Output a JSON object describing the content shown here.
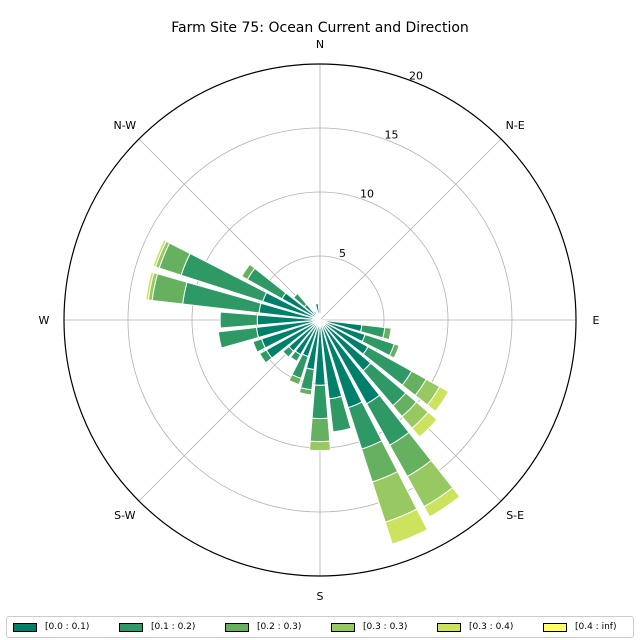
{
  "chart_data": {
    "type": "windrose",
    "title": "Farm Site 75: Ocean Current and Direction",
    "compass_labels": [
      "N",
      "N-E",
      "E",
      "S-E",
      "S",
      "S-W",
      "W",
      "N-W"
    ],
    "radial_ticks": [
      5,
      10,
      15,
      20
    ],
    "rmax": 20,
    "direction_step_deg": 11.25,
    "directions_deg": [
      0,
      11.25,
      22.5,
      33.75,
      45,
      56.25,
      67.5,
      78.75,
      90,
      101.25,
      112.5,
      123.75,
      135,
      146.25,
      157.5,
      168.75,
      180,
      191.25,
      202.5,
      213.75,
      225,
      236.25,
      247.5,
      258.75,
      270,
      281.25,
      292.5,
      303.75,
      315,
      326.25,
      337.5,
      348.75
    ],
    "bins": [
      {
        "label": "[0.0 : 0.1)",
        "color": "#00806a"
      },
      {
        "label": "[0.1 : 0.2)",
        "color": "#2f9966"
      },
      {
        "label": "[0.2 : 0.3)",
        "color": "#66b160"
      },
      {
        "label": "[0.3 : 0.3)",
        "color": "#98c862"
      },
      {
        "label": "[0.3 : 0.4)",
        "color": "#cce35e"
      },
      {
        "label": "[0.4 : inf)",
        "color": "#ffff66"
      }
    ],
    "values": [
      [
        0.5,
        0,
        0,
        0,
        0,
        0
      ],
      [
        0.3,
        0,
        0,
        0,
        0,
        0
      ],
      [
        0.2,
        0,
        0,
        0,
        0,
        0
      ],
      [
        0.1,
        0,
        0,
        0,
        0,
        0
      ],
      [
        0.1,
        0,
        0,
        0,
        0,
        0
      ],
      [
        0.1,
        0,
        0,
        0,
        0,
        0
      ],
      [
        0.1,
        0,
        0,
        0,
        0,
        0
      ],
      [
        0.1,
        0,
        0,
        0,
        0,
        0
      ],
      [
        0.1,
        0,
        0,
        0,
        0,
        0
      ],
      [
        3.3,
        1.8,
        0.5,
        0,
        0,
        0
      ],
      [
        3.7,
        2.4,
        0.4,
        0,
        0,
        0
      ],
      [
        4.3,
        3.9,
        1.3,
        1.2,
        0.8,
        0
      ],
      [
        5.2,
        3.6,
        1.1,
        1.2,
        0.9,
        0
      ],
      [
        7.5,
        3.7,
        2.8,
        2.7,
        0.9,
        0
      ],
      [
        7.2,
        3.4,
        2.7,
        3.3,
        1.8,
        0
      ],
      [
        6.2,
        2.6,
        0,
        0,
        0,
        0
      ],
      [
        5.1,
        2.6,
        1.8,
        0.7,
        0,
        0
      ],
      [
        3.9,
        1.6,
        0.4,
        0,
        0,
        0
      ],
      [
        3.0,
        1.8,
        0.5,
        0,
        0,
        0
      ],
      [
        3.1,
        0.6,
        0,
        0,
        0,
        0
      ],
      [
        3.2,
        0.6,
        0,
        0,
        0,
        0
      ],
      [
        4.8,
        0.6,
        0,
        0,
        0,
        0
      ],
      [
        4.8,
        0.7,
        0,
        0,
        0,
        0
      ],
      [
        5.0,
        3.0,
        0,
        0,
        0,
        0
      ],
      [
        4.9,
        2.9,
        0,
        0,
        0,
        0
      ],
      [
        4.8,
        6.0,
        2.4,
        0.3,
        0.2,
        0
      ],
      [
        4.7,
        6.7,
        1.8,
        0.3,
        0.2,
        0
      ],
      [
        3.4,
        3.1,
        0.5,
        0,
        0,
        0
      ],
      [
        1.6,
        1.1,
        0,
        0,
        0,
        0
      ],
      [
        0.8,
        0,
        0,
        0,
        0,
        0
      ],
      [
        0.6,
        0,
        0,
        0,
        0,
        0
      ],
      [
        1.3,
        0,
        0,
        0,
        0,
        0
      ]
    ]
  }
}
